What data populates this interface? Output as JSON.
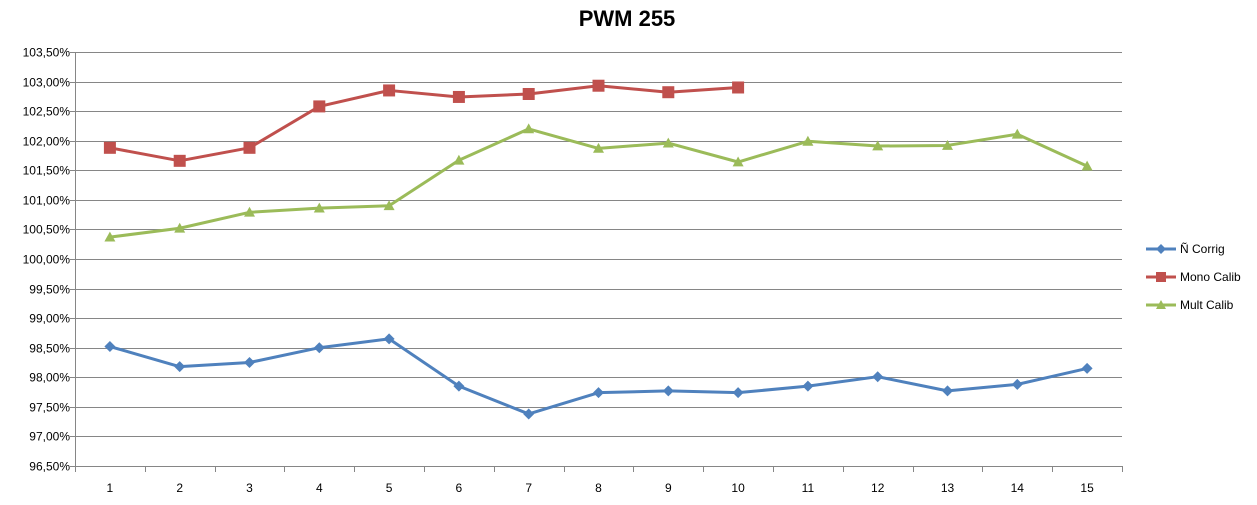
{
  "chart_data": {
    "type": "line",
    "title": "PWM 255",
    "xlabel": "",
    "ylabel": "",
    "categories": [
      "1",
      "2",
      "3",
      "4",
      "5",
      "6",
      "7",
      "8",
      "9",
      "10",
      "11",
      "12",
      "13",
      "14",
      "15"
    ],
    "y_ticks": [
      "96,50%",
      "97,00%",
      "97,50%",
      "98,00%",
      "98,50%",
      "99,00%",
      "99,50%",
      "100,00%",
      "100,50%",
      "101,00%",
      "101,50%",
      "102,00%",
      "102,50%",
      "103,00%",
      "103,50%"
    ],
    "ylim": [
      96.5,
      103.5
    ],
    "grid": true,
    "legend_position": "right",
    "series": [
      {
        "name": "Ñ Corrig",
        "color": "#4F81BD",
        "marker": "diamond",
        "values": [
          98.52,
          98.18,
          98.25,
          98.5,
          98.65,
          97.85,
          97.38,
          97.74,
          97.77,
          97.74,
          97.85,
          98.01,
          97.77,
          97.88,
          98.15
        ]
      },
      {
        "name": "Mono Calib",
        "color": "#C0504D",
        "marker": "square",
        "values": [
          101.88,
          101.66,
          101.88,
          102.58,
          102.85,
          102.74,
          102.79,
          102.93,
          102.82,
          102.9,
          null,
          null,
          null,
          null,
          null
        ]
      },
      {
        "name": "Mult Calib",
        "color": "#9BBB59",
        "marker": "triangle",
        "values": [
          100.37,
          100.52,
          100.79,
          100.86,
          100.9,
          101.67,
          102.2,
          101.87,
          101.96,
          101.64,
          101.99,
          101.91,
          101.92,
          102.11,
          101.57
        ]
      }
    ]
  }
}
